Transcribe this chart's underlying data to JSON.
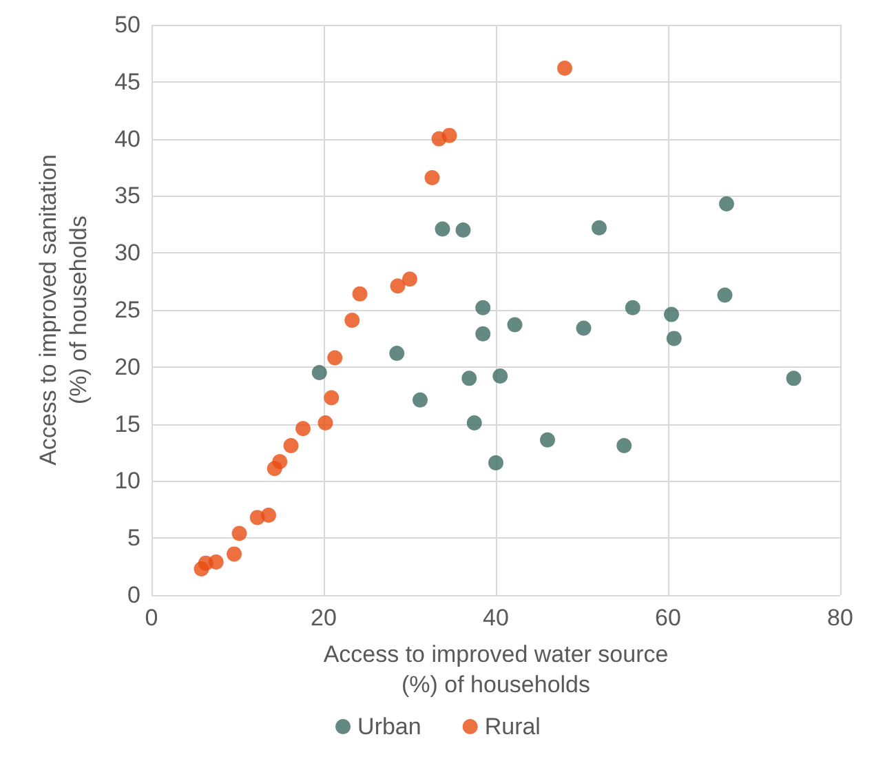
{
  "chart_data": {
    "type": "scatter",
    "xlabel": "Access to improved water source\n(%) of households",
    "ylabel": "Access to improved sanitation\n(%) of households",
    "xlim": [
      0,
      80
    ],
    "xticks": [
      0,
      20,
      40,
      60,
      80
    ],
    "ylim": [
      0,
      50
    ],
    "yticks": [
      0,
      5,
      10,
      15,
      20,
      25,
      30,
      35,
      40,
      45,
      50
    ],
    "grid": true,
    "legend": "bottom",
    "marker": "circle",
    "series": [
      {
        "name": "Urban",
        "color": "#3d6b63",
        "x": [
          19.5,
          28.5,
          31.2,
          36.9,
          40.5,
          37.5,
          40.0,
          38.5,
          46.0,
          54.9,
          74.6,
          60.7,
          33.8,
          36.2,
          52.0,
          66.8,
          38.5,
          42.2,
          50.2,
          55.9,
          60.4,
          66.6
        ],
        "values": [
          19.5,
          21.2,
          17.1,
          19.0,
          19.2,
          15.1,
          11.6,
          22.9,
          13.6,
          13.1,
          19.0,
          22.5,
          32.1,
          32.0,
          32.2,
          34.3,
          25.2,
          23.7,
          23.4,
          25.2,
          24.6,
          26.3
        ]
      },
      {
        "name": "Rural",
        "color": "#e84c12",
        "x": [
          48.0,
          33.4,
          34.6,
          32.6,
          24.2,
          28.6,
          30.0,
          23.3,
          21.3,
          20.9,
          20.2,
          17.6,
          16.2,
          14.9,
          14.3,
          13.6,
          12.3,
          10.2,
          9.6,
          7.5,
          6.3,
          5.8
        ],
        "values": [
          46.2,
          40.0,
          40.3,
          36.6,
          26.4,
          27.1,
          27.7,
          24.1,
          20.8,
          17.3,
          15.1,
          14.6,
          13.1,
          11.7,
          11.1,
          7.0,
          6.8,
          5.4,
          3.6,
          2.9,
          2.8,
          2.3
        ]
      }
    ]
  }
}
